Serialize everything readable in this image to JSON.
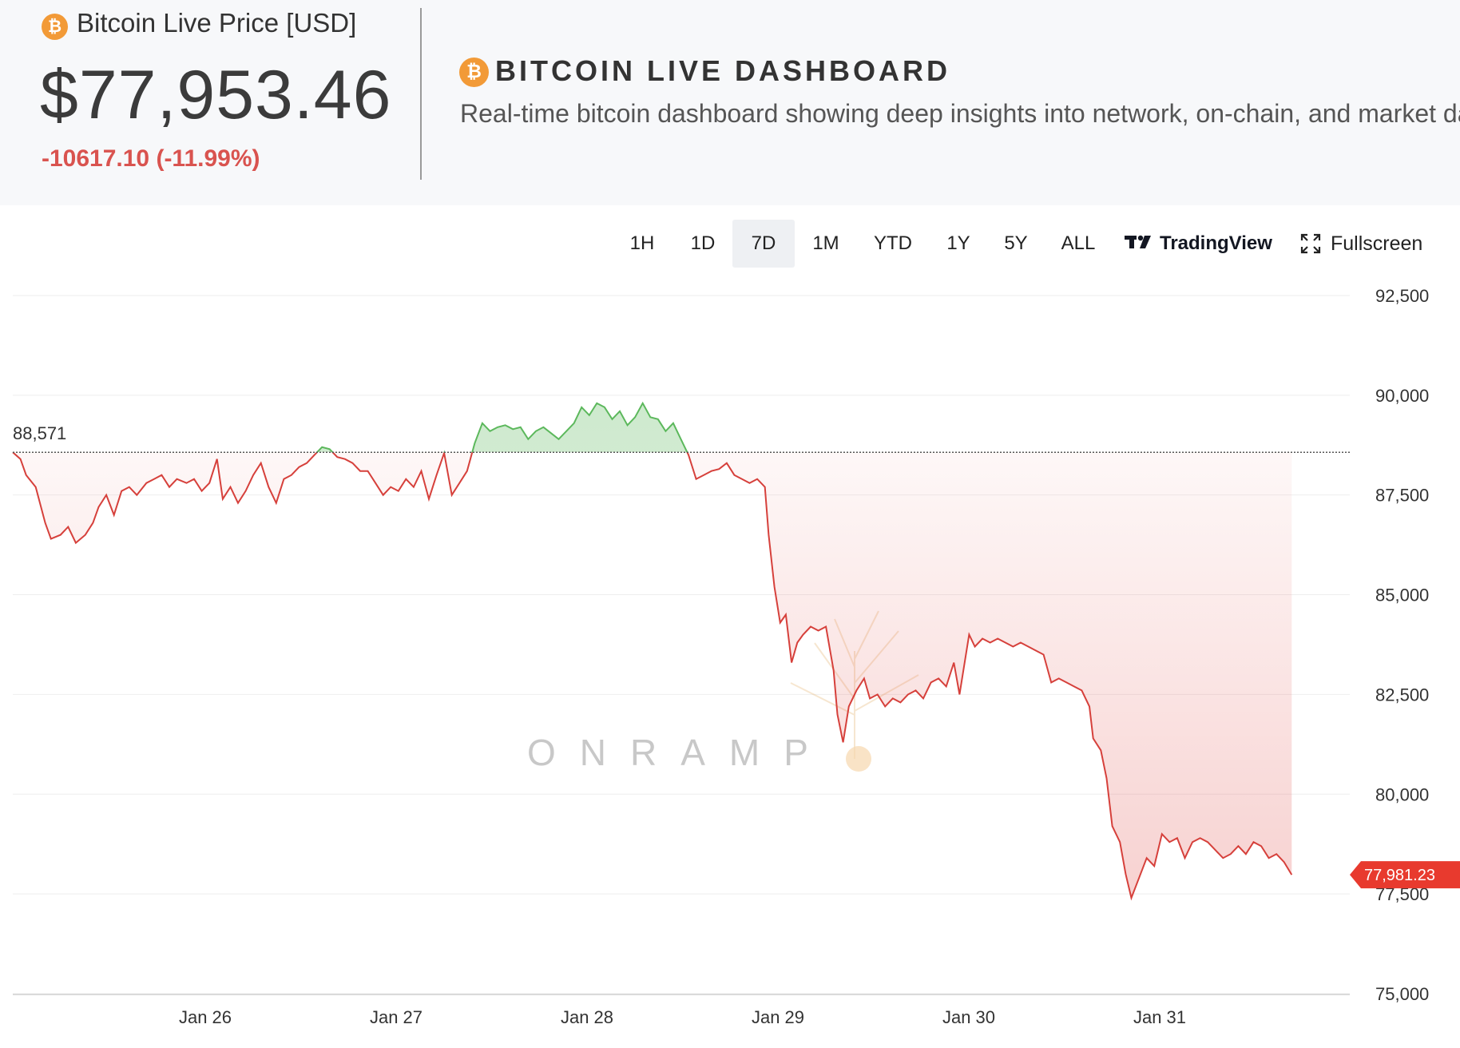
{
  "header": {
    "price_label": "Bitcoin Live Price [USD]",
    "price_value": "$77,953.46",
    "price_change": "-10617.10 (-11.99%)",
    "dashboard_title": "BITCOIN LIVE DASHBOARD",
    "dashboard_subtitle": "Real-time bitcoin dashboard showing deep insights into network, on-chain, and market data",
    "coin_symbol": "₿"
  },
  "toolbar": {
    "ranges": [
      "1H",
      "1D",
      "7D",
      "1M",
      "YTD",
      "1Y",
      "5Y",
      "ALL"
    ],
    "active_range": "7D",
    "tradingview_label": "TradingView",
    "fullscreen_label": "Fullscreen"
  },
  "colors": {
    "accent_orange": "#f29a37",
    "down_red": "#d9534f",
    "up_green": "#5cb85c",
    "badge_red": "#e83a2e"
  },
  "chart_data": {
    "type": "area",
    "title": "",
    "baseline_value": 88571,
    "baseline_label": "88,571",
    "last_value": 77981.23,
    "last_label": "77,981.23",
    "watermark": "ONRAMP",
    "ylim": [
      75000,
      93200
    ],
    "yticks": [
      75000,
      77500,
      80000,
      82500,
      85000,
      87500,
      90000,
      92500
    ],
    "ytick_labels": [
      "75,000",
      "77,500",
      "80,000",
      "82,500",
      "85,000",
      "87,500",
      "90,000",
      "92,500"
    ],
    "xlim": [
      0,
      7.0
    ],
    "xticks": [
      1.0,
      2.0,
      3.0,
      4.0,
      5.0,
      6.0
    ],
    "xtick_labels": [
      "Jan 26",
      "Jan 27",
      "Jan 28",
      "Jan 29",
      "Jan 30",
      "Jan 31"
    ],
    "points": [
      [
        0.0,
        88571
      ],
      [
        0.04,
        88400
      ],
      [
        0.07,
        88000
      ],
      [
        0.12,
        87700
      ],
      [
        0.17,
        86800
      ],
      [
        0.2,
        86400
      ],
      [
        0.25,
        86500
      ],
      [
        0.29,
        86700
      ],
      [
        0.33,
        86300
      ],
      [
        0.38,
        86500
      ],
      [
        0.42,
        86800
      ],
      [
        0.45,
        87200
      ],
      [
        0.49,
        87500
      ],
      [
        0.53,
        87000
      ],
      [
        0.57,
        87600
      ],
      [
        0.61,
        87700
      ],
      [
        0.65,
        87500
      ],
      [
        0.7,
        87800
      ],
      [
        0.74,
        87900
      ],
      [
        0.78,
        88000
      ],
      [
        0.82,
        87700
      ],
      [
        0.86,
        87900
      ],
      [
        0.91,
        87800
      ],
      [
        0.95,
        87900
      ],
      [
        0.99,
        87600
      ],
      [
        1.03,
        87800
      ],
      [
        1.07,
        88400
      ],
      [
        1.1,
        87400
      ],
      [
        1.14,
        87700
      ],
      [
        1.18,
        87300
      ],
      [
        1.22,
        87600
      ],
      [
        1.26,
        88000
      ],
      [
        1.3,
        88300
      ],
      [
        1.34,
        87700
      ],
      [
        1.38,
        87300
      ],
      [
        1.42,
        87900
      ],
      [
        1.46,
        88000
      ],
      [
        1.5,
        88200
      ],
      [
        1.54,
        88300
      ],
      [
        1.58,
        88500
      ],
      [
        1.62,
        88700
      ],
      [
        1.66,
        88650
      ],
      [
        1.7,
        88450
      ],
      [
        1.74,
        88400
      ],
      [
        1.78,
        88300
      ],
      [
        1.82,
        88100
      ],
      [
        1.86,
        88100
      ],
      [
        1.9,
        87800
      ],
      [
        1.94,
        87500
      ],
      [
        1.98,
        87700
      ],
      [
        2.02,
        87600
      ],
      [
        2.06,
        87900
      ],
      [
        2.1,
        87700
      ],
      [
        2.14,
        88100
      ],
      [
        2.18,
        87400
      ],
      [
        2.22,
        88000
      ],
      [
        2.26,
        88550
      ],
      [
        2.3,
        87500
      ],
      [
        2.34,
        87800
      ],
      [
        2.38,
        88100
      ],
      [
        2.42,
        88800
      ],
      [
        2.46,
        89300
      ],
      [
        2.5,
        89100
      ],
      [
        2.54,
        89200
      ],
      [
        2.58,
        89250
      ],
      [
        2.62,
        89150
      ],
      [
        2.66,
        89200
      ],
      [
        2.7,
        88900
      ],
      [
        2.74,
        89100
      ],
      [
        2.78,
        89200
      ],
      [
        2.82,
        89050
      ],
      [
        2.86,
        88900
      ],
      [
        2.9,
        89100
      ],
      [
        2.94,
        89300
      ],
      [
        2.98,
        89700
      ],
      [
        3.02,
        89500
      ],
      [
        3.06,
        89800
      ],
      [
        3.1,
        89700
      ],
      [
        3.14,
        89400
      ],
      [
        3.18,
        89600
      ],
      [
        3.22,
        89250
      ],
      [
        3.26,
        89450
      ],
      [
        3.3,
        89800
      ],
      [
        3.34,
        89450
      ],
      [
        3.38,
        89400
      ],
      [
        3.42,
        89100
      ],
      [
        3.46,
        89300
      ],
      [
        3.5,
        88900
      ],
      [
        3.54,
        88500
      ],
      [
        3.58,
        87900
      ],
      [
        3.62,
        88000
      ],
      [
        3.66,
        88100
      ],
      [
        3.7,
        88150
      ],
      [
        3.74,
        88300
      ],
      [
        3.78,
        88000
      ],
      [
        3.82,
        87900
      ],
      [
        3.86,
        87800
      ],
      [
        3.9,
        87900
      ],
      [
        3.94,
        87700
      ],
      [
        3.96,
        86500
      ],
      [
        3.99,
        85200
      ],
      [
        4.02,
        84300
      ],
      [
        4.05,
        84500
      ],
      [
        4.08,
        83300
      ],
      [
        4.11,
        83800
      ],
      [
        4.14,
        84000
      ],
      [
        4.18,
        84200
      ],
      [
        4.22,
        84100
      ],
      [
        4.26,
        84200
      ],
      [
        4.3,
        83100
      ],
      [
        4.32,
        82000
      ],
      [
        4.35,
        81300
      ],
      [
        4.38,
        82200
      ],
      [
        4.42,
        82600
      ],
      [
        4.46,
        82900
      ],
      [
        4.49,
        82400
      ],
      [
        4.53,
        82500
      ],
      [
        4.57,
        82200
      ],
      [
        4.61,
        82400
      ],
      [
        4.65,
        82300
      ],
      [
        4.69,
        82500
      ],
      [
        4.73,
        82600
      ],
      [
        4.77,
        82400
      ],
      [
        4.81,
        82800
      ],
      [
        4.85,
        82900
      ],
      [
        4.89,
        82700
      ],
      [
        4.93,
        83300
      ],
      [
        4.96,
        82500
      ],
      [
        4.98,
        83100
      ],
      [
        5.01,
        84000
      ],
      [
        5.04,
        83700
      ],
      [
        5.08,
        83900
      ],
      [
        5.12,
        83800
      ],
      [
        5.16,
        83900
      ],
      [
        5.2,
        83800
      ],
      [
        5.24,
        83700
      ],
      [
        5.28,
        83800
      ],
      [
        5.32,
        83700
      ],
      [
        5.36,
        83600
      ],
      [
        5.4,
        83500
      ],
      [
        5.44,
        82800
      ],
      [
        5.48,
        82900
      ],
      [
        5.52,
        82800
      ],
      [
        5.56,
        82700
      ],
      [
        5.6,
        82600
      ],
      [
        5.64,
        82200
      ],
      [
        5.66,
        81400
      ],
      [
        5.7,
        81100
      ],
      [
        5.73,
        80400
      ],
      [
        5.76,
        79200
      ],
      [
        5.8,
        78800
      ],
      [
        5.83,
        78000
      ],
      [
        5.86,
        77400
      ],
      [
        5.9,
        77900
      ],
      [
        5.94,
        78400
      ],
      [
        5.98,
        78200
      ],
      [
        6.02,
        79000
      ],
      [
        6.06,
        78800
      ],
      [
        6.1,
        78900
      ],
      [
        6.14,
        78400
      ],
      [
        6.18,
        78800
      ],
      [
        6.22,
        78900
      ],
      [
        6.26,
        78800
      ],
      [
        6.3,
        78600
      ],
      [
        6.34,
        78400
      ],
      [
        6.38,
        78500
      ],
      [
        6.42,
        78700
      ],
      [
        6.46,
        78500
      ],
      [
        6.5,
        78800
      ],
      [
        6.54,
        78700
      ],
      [
        6.58,
        78400
      ],
      [
        6.62,
        78500
      ],
      [
        6.66,
        78300
      ],
      [
        6.7,
        77981
      ]
    ]
  }
}
